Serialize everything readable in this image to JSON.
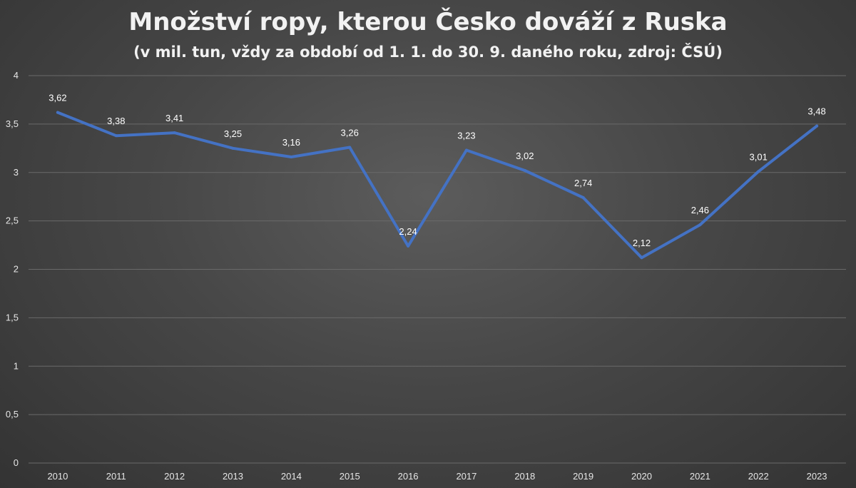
{
  "chart_data": {
    "type": "line",
    "title": "Množství ropy, kterou Česko dováží z Ruska",
    "subtitle": "(v mil. tun, vždy za období od 1. 1. do 30. 9. daného roku, zdroj: ČSÚ)",
    "categories": [
      "2010",
      "2011",
      "2012",
      "2013",
      "2014",
      "2015",
      "2016",
      "2017",
      "2018",
      "2019",
      "2020",
      "2021",
      "2022",
      "2023"
    ],
    "values": [
      3.62,
      3.38,
      3.41,
      3.25,
      3.16,
      3.26,
      2.24,
      3.23,
      3.02,
      2.74,
      2.12,
      2.46,
      3.01,
      3.48
    ],
    "data_labels": [
      "3,62",
      "3,38",
      "3,41",
      "3,25",
      "3,16",
      "3,26",
      "2,24",
      "3,23",
      "3,02",
      "2,74",
      "2,12",
      "2,46",
      "3,01",
      "3,48"
    ],
    "y_ticks": [
      0,
      0.5,
      1,
      1.5,
      2,
      2.5,
      3,
      3.5,
      4
    ],
    "y_tick_labels": [
      "0",
      "0,5",
      "1",
      "1,5",
      "2",
      "2,5",
      "3",
      "3,5",
      "4"
    ],
    "ylim": [
      0,
      4
    ],
    "grid": true,
    "legend": "none",
    "line_color": "#4472c4",
    "background_color": "#4a4a4a"
  }
}
